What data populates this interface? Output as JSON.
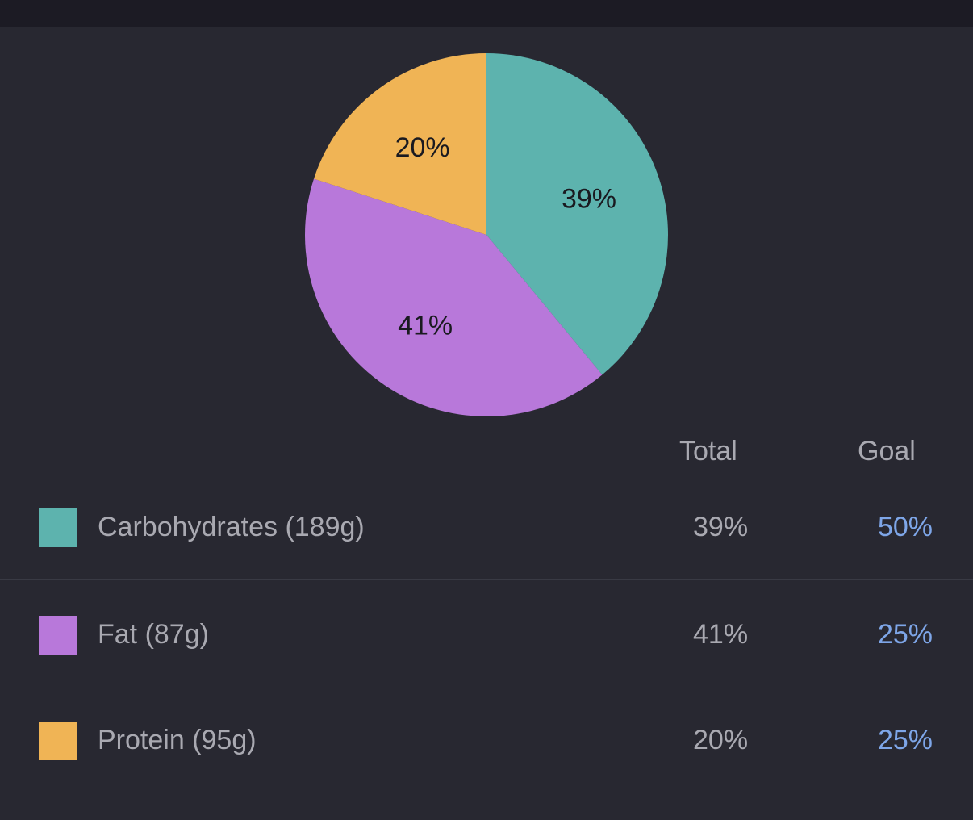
{
  "chart_data": {
    "type": "pie",
    "slices": [
      {
        "name": "Carbohydrates",
        "value": 39,
        "label": "39%",
        "color": "#5db3ae"
      },
      {
        "name": "Fat",
        "value": 41,
        "label": "41%",
        "color": "#b878da"
      },
      {
        "name": "Protein",
        "value": 20,
        "label": "20%",
        "color": "#f0b455"
      }
    ]
  },
  "table": {
    "headers": {
      "total": "Total",
      "goal": "Goal"
    },
    "rows": [
      {
        "label": "Carbohydrates (189g)",
        "total": "39%",
        "goal": "50%",
        "color": "#5db3ae"
      },
      {
        "label": "Fat (87g)",
        "total": "41%",
        "goal": "25%",
        "color": "#b878da"
      },
      {
        "label": "Protein (95g)",
        "total": "20%",
        "goal": "25%",
        "color": "#f0b455"
      }
    ]
  }
}
